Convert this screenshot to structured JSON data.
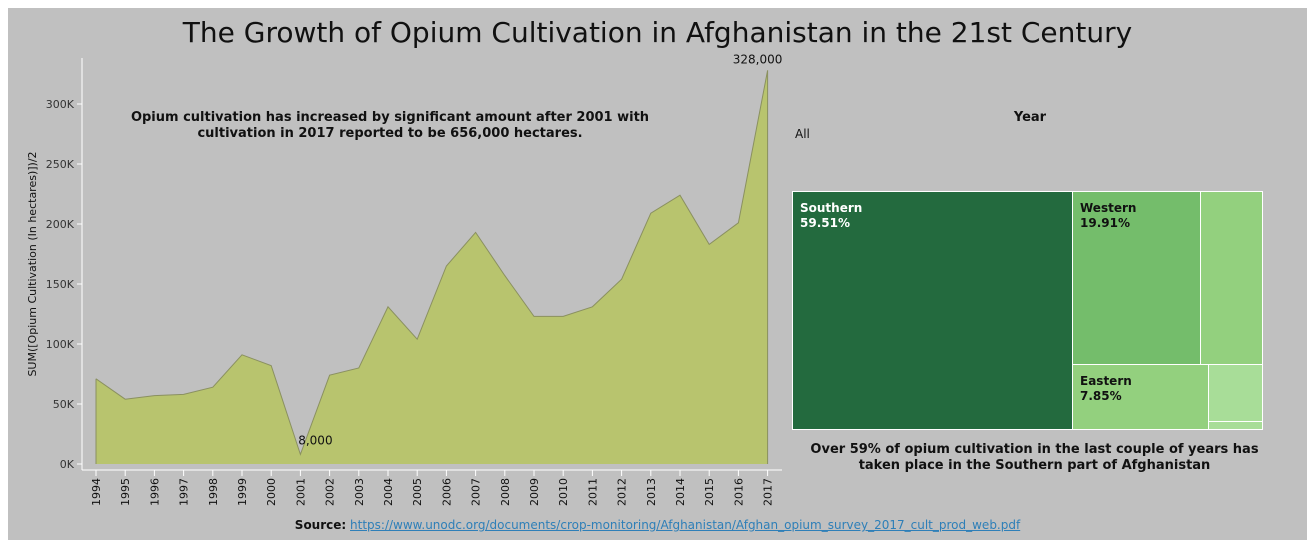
{
  "page": {
    "title": "The Growth of Opium Cultivation in Afghanistan in the 21st Century",
    "source_label": "Source:",
    "source_url": "https://www.unodc.org/documents/crop-monitoring/Afghanistan/Afghan_opium_survey_2017_cult_prod_web.pdf"
  },
  "colors": {
    "background": "#c0c0c0",
    "area_fill": "#b8c46e",
    "area_line": "#8a9060",
    "southern": "#236a3e",
    "western": "#74bd6b",
    "eastern": "#93d07e",
    "other": "#a8dd98"
  },
  "chart_data": [
    {
      "type": "area",
      "title": "",
      "xlabel": "",
      "ylabel": "SUM([Opium Cultivation (In hectares)])/2",
      "x": [
        "1994",
        "1995",
        "1996",
        "1997",
        "1998",
        "1999",
        "2000",
        "2001",
        "2002",
        "2003",
        "2004",
        "2005",
        "2006",
        "2007",
        "2008",
        "2009",
        "2010",
        "2011",
        "2012",
        "2013",
        "2014",
        "2015",
        "2016",
        "2017"
      ],
      "values": [
        71000,
        54000,
        57000,
        58000,
        64000,
        91000,
        82000,
        8000,
        74000,
        80000,
        131000,
        104000,
        165000,
        193000,
        157000,
        123000,
        123000,
        131000,
        154000,
        209000,
        224000,
        183000,
        201000,
        328000
      ],
      "ylim": [
        0,
        330000
      ],
      "yticks": [
        0,
        50000,
        100000,
        150000,
        200000,
        250000,
        300000
      ],
      "ytick_labels": [
        "0K",
        "50K",
        "100K",
        "150K",
        "200K",
        "250K",
        "300K"
      ],
      "data_labels": [
        {
          "x": "2001",
          "text": "8,000"
        },
        {
          "x": "2017",
          "text": "328,000"
        }
      ],
      "annotation": "Opium cultivation has increased by significant amount after 2001 with cultivation in 2017 reported to be 656,000 hectares.",
      "grid": false
    },
    {
      "type": "treemap",
      "filter": {
        "title": "Year",
        "value": "All"
      },
      "items": [
        {
          "name": "Southern",
          "label": "59.51%",
          "value": 59.51
        },
        {
          "name": "Western",
          "label": "19.91%",
          "value": 19.91
        },
        {
          "name": "",
          "label": "",
          "value": 10.9
        },
        {
          "name": "Eastern",
          "label": "7.85%",
          "value": 7.85
        },
        {
          "name": "",
          "label": "",
          "value": 1.5
        },
        {
          "name": "",
          "label": "",
          "value": 0.33
        }
      ],
      "caption": "Over 59% of opium cultivation in the last couple of years has taken place in the Southern part of Afghanistan"
    }
  ]
}
